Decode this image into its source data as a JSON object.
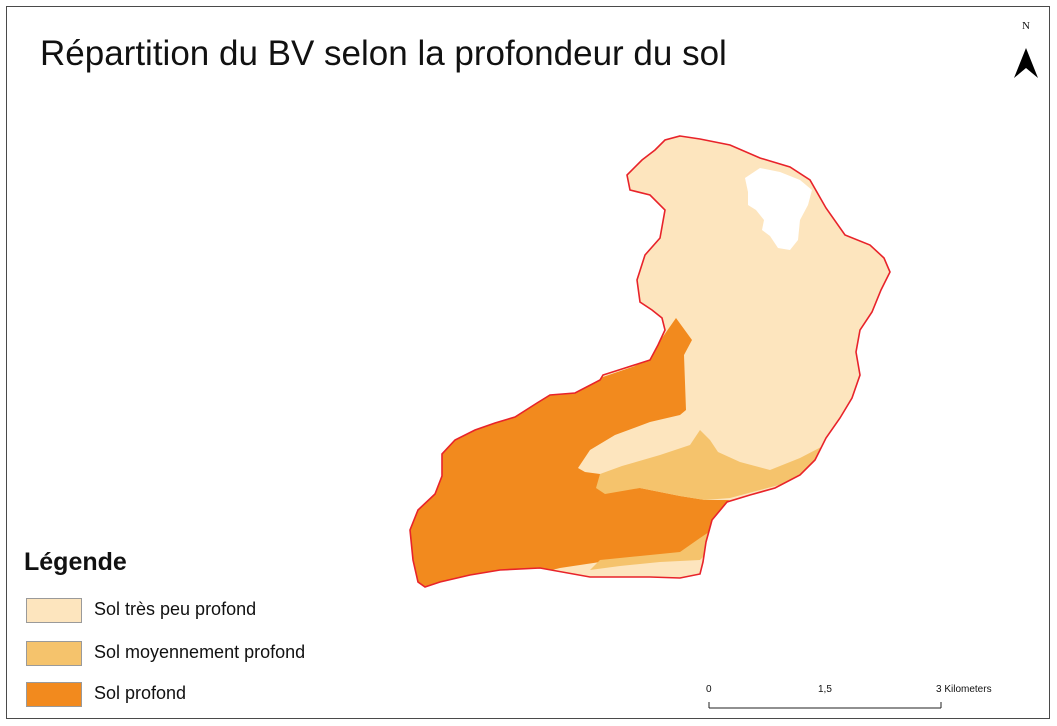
{
  "title": "Répartition du BV selon la profondeur du sol",
  "north_arrow": {
    "letter": "N",
    "icon": "north-arrow-icon"
  },
  "legend": {
    "title": "Légende",
    "items": [
      {
        "label": "Sol très peu profond",
        "color": "#fde5be"
      },
      {
        "label": "Sol moyennement profond",
        "color": "#f5c36c"
      },
      {
        "label": "Sol profond",
        "color": "#f28a1e"
      }
    ]
  },
  "scale_bar": {
    "labels": [
      "0",
      "1,5",
      "3 Kilometers"
    ],
    "ticks_km": [
      0,
      1.5,
      3
    ]
  },
  "colors": {
    "boundary": "#e8232a",
    "shallow": "#fde5be",
    "medium": "#f5c36c",
    "deep": "#f28a1e",
    "water": "#ffffff"
  }
}
